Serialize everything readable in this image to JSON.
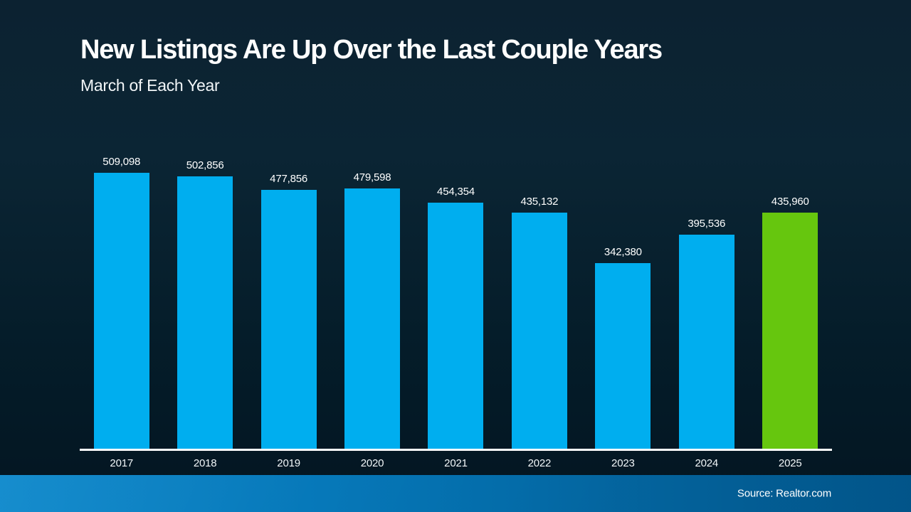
{
  "header": {
    "title": "New Listings Are Up Over the Last Couple Years",
    "subtitle": "March of Each Year"
  },
  "footer": {
    "source": "Source: Realtor.com"
  },
  "colors": {
    "bar_default": "#00aeef",
    "bar_highlight": "#66c60e",
    "axis": "#ffffff",
    "text": "#ffffff"
  },
  "chart_data": {
    "type": "bar",
    "title": "New Listings Are Up Over the Last Couple Years",
    "subtitle": "March of Each Year",
    "categories": [
      "2017",
      "2018",
      "2019",
      "2020",
      "2021",
      "2022",
      "2023",
      "2024",
      "2025"
    ],
    "values": [
      509098,
      502856,
      477856,
      479598,
      454354,
      435132,
      342380,
      395536,
      435960
    ],
    "value_labels": [
      "509,098",
      "502,856",
      "477,856",
      "479,598",
      "454,354",
      "435,132",
      "342,380",
      "395,536",
      "435,960"
    ],
    "highlight_index": 8,
    "ylim": [
      0,
      509098
    ],
    "xlabel": "",
    "ylabel": "",
    "grid": false,
    "legend": false,
    "source": "Source: Realtor.com"
  }
}
